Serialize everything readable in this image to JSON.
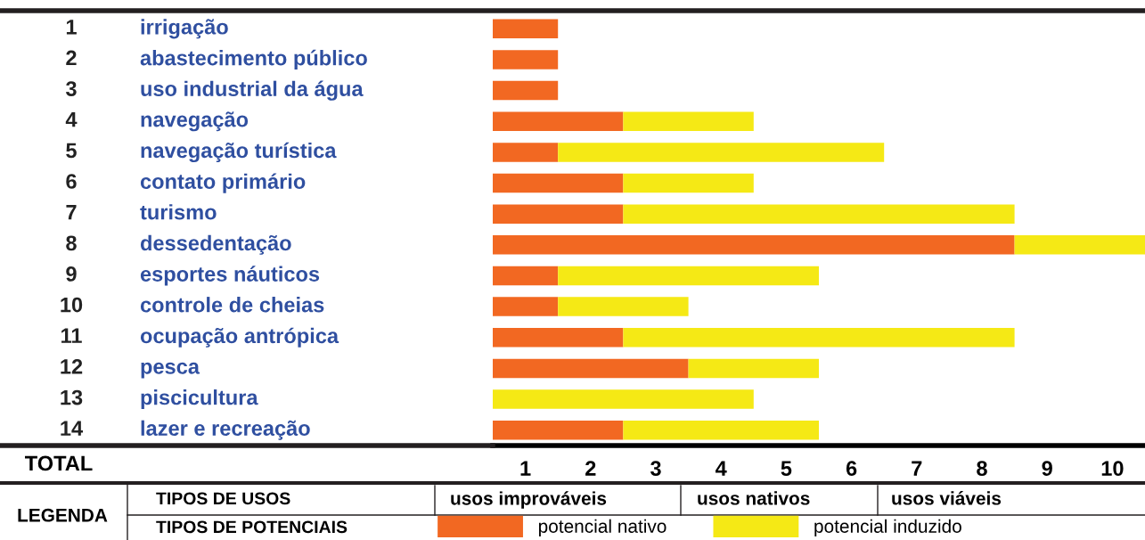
{
  "chart_data": {
    "type": "bar",
    "orientation": "horizontal",
    "stacked": true,
    "categories": [
      "irrigação",
      "abastecimento público",
      "uso industrial da água",
      "navegação",
      "navegação turística",
      "contato primário",
      "turismo",
      "dessedentação",
      "esportes náuticos",
      "controle de cheias",
      "ocupação antrópica",
      "pesca",
      "piscicultura",
      "lazer e recreação"
    ],
    "y2_categories": [
      "1",
      "2",
      "3",
      "4",
      "5",
      "6",
      "7",
      "8",
      "9",
      "10",
      "11",
      "12",
      "13",
      "14"
    ],
    "series": [
      {
        "name": "potencial nativo",
        "color": "#f26822",
        "values": [
          1,
          1,
          1,
          2,
          1,
          2,
          2,
          8,
          1,
          1,
          2,
          3,
          null,
          2
        ]
      },
      {
        "name": "potencial induzido",
        "color": "#f5e915",
        "values": [
          null,
          null,
          null,
          2,
          5,
          2,
          6,
          2,
          4,
          2,
          6,
          2,
          4,
          3
        ]
      }
    ],
    "xlabel": "TOTAL",
    "xlim": [
      0,
      10
    ],
    "xticks": [
      {
        "value": 0.5,
        "label": "1"
      },
      {
        "value": 1.5,
        "label": "2"
      },
      {
        "value": 2.5,
        "label": "3"
      },
      {
        "value": 3.5,
        "label": "4"
      },
      {
        "value": 4.5,
        "label": "5"
      },
      {
        "value": 5.5,
        "label": "6"
      },
      {
        "value": 6.5,
        "label": "7"
      },
      {
        "value": 7.5,
        "label": "8"
      },
      {
        "value": 8.5,
        "label": "9"
      },
      {
        "value": 9.5,
        "label": "10"
      }
    ],
    "grid": false,
    "legend": "bottom",
    "annotations": [
      "LEGENDA",
      "TIPOS DE USOS",
      "TIPOS DE POTENCIAIS",
      "usos improváveis",
      "usos nativos",
      "usos viáveis"
    ]
  }
}
